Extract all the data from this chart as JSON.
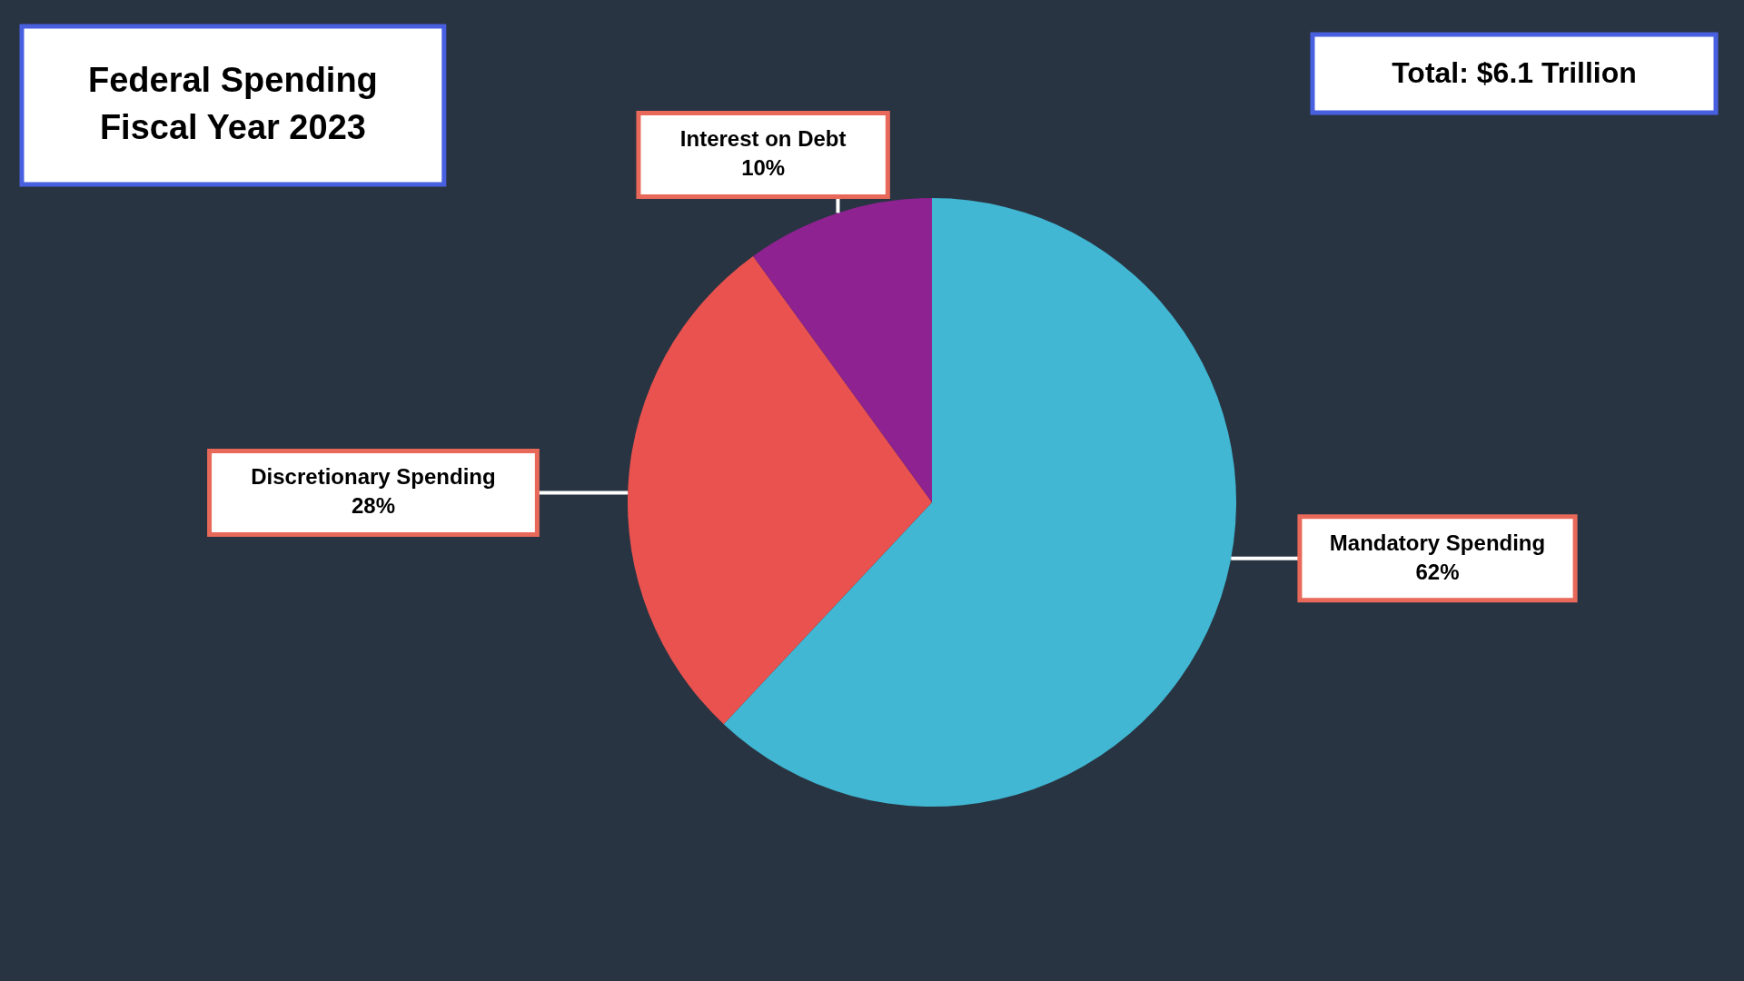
{
  "chart_data": {
    "type": "pie",
    "title": "Federal Spending",
    "subtitle": "Fiscal Year 2023",
    "categories": [
      "Mandatory Spending",
      "Discretionary Spending",
      "Interest on Debt"
    ],
    "values": [
      62,
      28,
      10
    ],
    "colors": [
      "#41b7d3",
      "#e9524f",
      "#8e2290"
    ],
    "value_labels": [
      "62%",
      "28%",
      "10%"
    ],
    "annotations": [
      "Total: $6.1 Trillion"
    ]
  }
}
